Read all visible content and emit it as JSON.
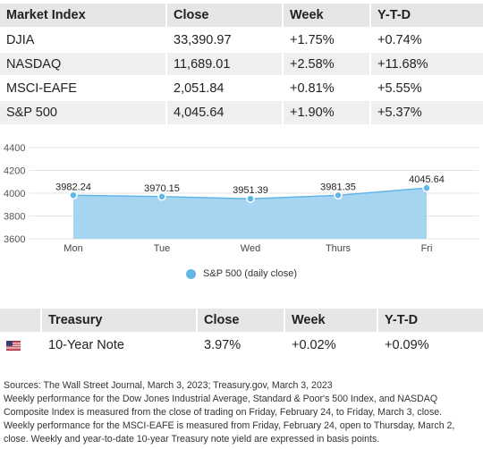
{
  "market_table": {
    "headers": [
      "Market Index",
      "Close",
      "Week",
      "Y-T-D"
    ],
    "rows": [
      [
        "DJIA",
        "33,390.97",
        "+1.75%",
        "+0.74%"
      ],
      [
        "NASDAQ",
        "11,689.01",
        "+2.58%",
        "+11.68%"
      ],
      [
        "MSCI-EAFE",
        "2,051.84",
        "+0.81%",
        "+5.55%"
      ],
      [
        "S&P 500",
        "4,045.64",
        "+1.90%",
        "+5.37%"
      ]
    ]
  },
  "chart_data": {
    "type": "area",
    "categories": [
      "Mon",
      "Tue",
      "Wed",
      "Thurs",
      "Fri"
    ],
    "series": [
      {
        "name": "S&P 500 (daily close)",
        "values": [
          3982.24,
          3970.15,
          3951.39,
          3981.35,
          4045.64
        ]
      }
    ],
    "data_labels": [
      "3982.24",
      "3970.15",
      "3951.39",
      "3981.35",
      "4045.64"
    ],
    "y_ticks": [
      "4400",
      "4200",
      "4000",
      "3800",
      "3600"
    ],
    "ylim": [
      3600,
      4400
    ],
    "grid": true,
    "legend_position": "bottom",
    "title": "",
    "xlabel": "",
    "ylabel": "",
    "colors": {
      "area": "#9bd0f0",
      "line": "#62b6e6",
      "marker": "#62b6e6"
    }
  },
  "legend": {
    "label": "S&P 500 (daily close)"
  },
  "treasury_table": {
    "headers": [
      "",
      "Treasury",
      "Close",
      "Week",
      "Y-T-D"
    ],
    "rows": [
      [
        "flag-us-icon",
        "10-Year Note",
        "3.97%",
        "+0.02%",
        "+0.09%"
      ]
    ]
  },
  "footnotes": [
    "Sources: The Wall Street Journal, March 3, 2023; Treasury.gov, March 3, 2023",
    "Weekly performance for the Dow Jones Industrial Average, Standard & Poor's 500 Index, and NASDAQ",
    "Composite Index is measured from the close of trading on Friday, February 24, to Friday, March 3, close.",
    "Weekly performance for the MSCI-EAFE is measured from Friday, February 24, open to Thursday, March 2,",
    "close. Weekly and year-to-date 10-year Treasury note yield are expressed in basis points."
  ]
}
